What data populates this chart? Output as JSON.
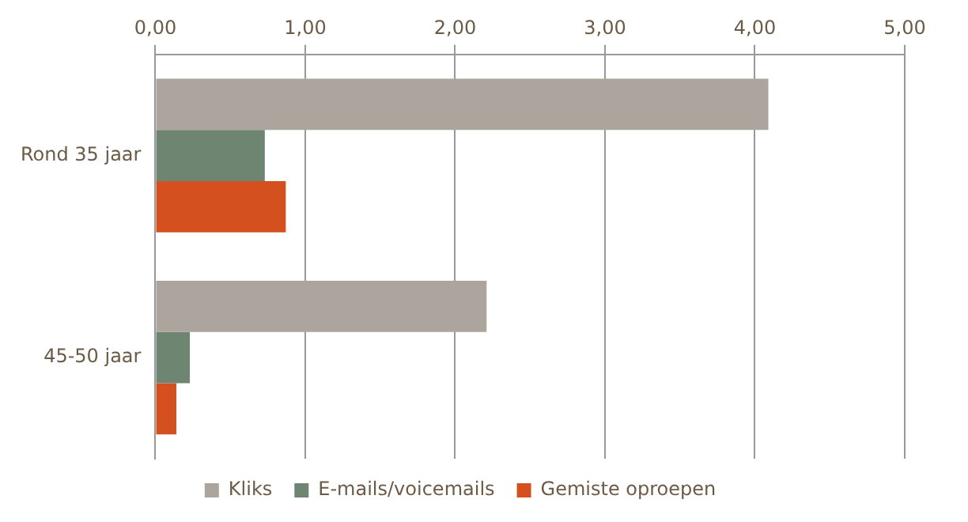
{
  "chart_data": {
    "type": "bar",
    "orientation": "horizontal",
    "categories": [
      "Rond 35 jaar",
      "45-50 jaar"
    ],
    "series": [
      {
        "name": "Kliks",
        "color": "#aba59d",
        "values": [
          4.09,
          2.21
        ]
      },
      {
        "name": "E-mails/voicemails",
        "color": "#6e8571",
        "values": [
          0.73,
          0.23
        ]
      },
      {
        "name": "Gemiste oproepen",
        "color": "#d4501e",
        "values": [
          0.87,
          0.14
        ]
      }
    ],
    "xlim": [
      0,
      5
    ],
    "xticks": [
      {
        "value": 0,
        "label": "0,00"
      },
      {
        "value": 1,
        "label": "1,00"
      },
      {
        "value": 2,
        "label": "2,00"
      },
      {
        "value": 3,
        "label": "3,00"
      },
      {
        "value": 4,
        "label": "4,00"
      },
      {
        "value": 5,
        "label": "5,00"
      }
    ],
    "grid": "x",
    "legend": "bottom"
  }
}
